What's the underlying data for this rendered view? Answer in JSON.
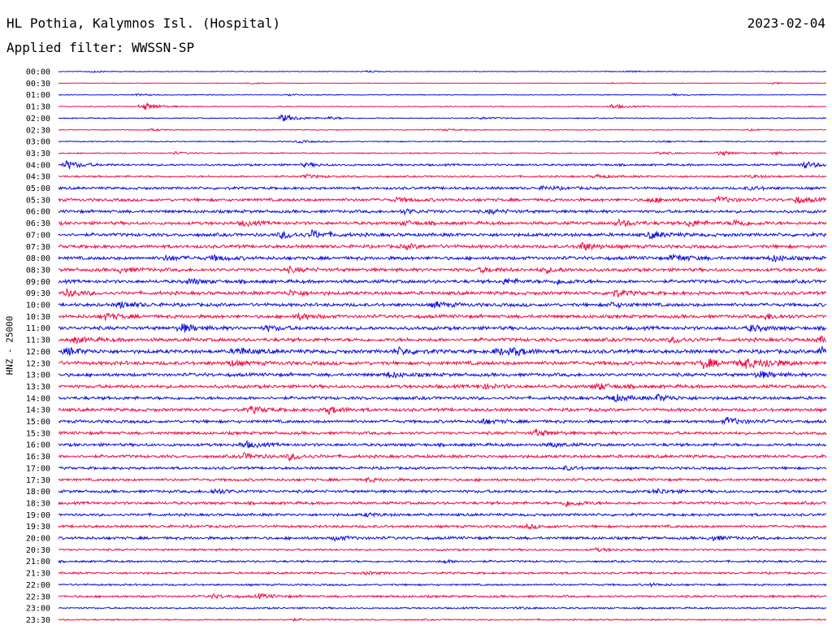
{
  "header": {
    "station": "HL Pothia, Kalymnos Isl. (Hospital)",
    "date": "2023-02-04",
    "filter": "Applied filter: WWSSN-SP"
  },
  "colors": {
    "even_row": "#1010e0",
    "odd_row": "#f0104a",
    "text": "#000000"
  },
  "chart_data": {
    "type": "line",
    "ylabel": "HNZ - 25000",
    "series": [
      {
        "name": "00:00",
        "noise": 0.2,
        "events": [
          {
            "x": 0.04,
            "amp": 0.5
          },
          {
            "x": 0.4,
            "amp": 0.4
          },
          {
            "x": 0.74,
            "amp": 0.3
          }
        ]
      },
      {
        "name": "00:30",
        "noise": 0.15,
        "events": [
          {
            "x": 0.25,
            "amp": 0.3
          },
          {
            "x": 0.72,
            "amp": 0.4
          },
          {
            "x": 0.93,
            "amp": 0.4
          }
        ]
      },
      {
        "name": "01:00",
        "noise": 0.22,
        "events": [
          {
            "x": 0.1,
            "amp": 0.4
          },
          {
            "x": 0.3,
            "amp": 0.4
          },
          {
            "x": 0.8,
            "amp": 0.3
          }
        ]
      },
      {
        "name": "01:30",
        "noise": 0.25,
        "events": [
          {
            "x": 0.11,
            "amp": 1.8
          },
          {
            "x": 0.72,
            "amp": 1.0
          }
        ]
      },
      {
        "name": "02:00",
        "noise": 0.3,
        "events": [
          {
            "x": 0.29,
            "amp": 1.8
          },
          {
            "x": 0.35,
            "amp": 0.5
          },
          {
            "x": 0.55,
            "amp": 0.4
          }
        ]
      },
      {
        "name": "02:30",
        "noise": 0.25,
        "events": [
          {
            "x": 0.12,
            "amp": 0.4
          },
          {
            "x": 0.5,
            "amp": 0.4
          },
          {
            "x": 0.9,
            "amp": 0.3
          }
        ]
      },
      {
        "name": "03:00",
        "noise": 0.3,
        "events": [
          {
            "x": 0.31,
            "amp": 0.6
          },
          {
            "x": 0.78,
            "amp": 0.4
          }
        ]
      },
      {
        "name": "03:30",
        "noise": 0.3,
        "events": [
          {
            "x": 0.15,
            "amp": 0.5
          },
          {
            "x": 0.78,
            "amp": 0.6
          },
          {
            "x": 0.86,
            "amp": 1.0
          },
          {
            "x": 0.93,
            "amp": 0.6
          }
        ]
      },
      {
        "name": "04:00",
        "noise": 0.55,
        "events": [
          {
            "x": 0.01,
            "amp": 1.8
          },
          {
            "x": 0.32,
            "amp": 0.7
          },
          {
            "x": 0.97,
            "amp": 1.6
          }
        ]
      },
      {
        "name": "04:30",
        "noise": 0.5,
        "events": [
          {
            "x": 0.32,
            "amp": 0.8
          },
          {
            "x": 0.7,
            "amp": 0.8
          },
          {
            "x": 0.9,
            "amp": 0.6
          }
        ]
      },
      {
        "name": "05:00",
        "noise": 0.7,
        "events": [
          {
            "x": 0.63,
            "amp": 0.8
          },
          {
            "x": 0.9,
            "amp": 0.7
          }
        ]
      },
      {
        "name": "05:30",
        "noise": 0.8,
        "events": [
          {
            "x": 0.44,
            "amp": 0.8
          },
          {
            "x": 0.77,
            "amp": 1.0
          },
          {
            "x": 0.86,
            "amp": 1.3
          },
          {
            "x": 0.96,
            "amp": 1.4
          }
        ]
      },
      {
        "name": "06:00",
        "noise": 0.8,
        "events": [
          {
            "x": 0.45,
            "amp": 1.0
          },
          {
            "x": 0.56,
            "amp": 0.8
          }
        ]
      },
      {
        "name": "06:30",
        "noise": 0.85,
        "events": [
          {
            "x": 0.24,
            "amp": 1.0
          },
          {
            "x": 0.45,
            "amp": 1.0
          },
          {
            "x": 0.73,
            "amp": 1.3
          },
          {
            "x": 0.82,
            "amp": 1.3
          },
          {
            "x": 0.88,
            "amp": 1.4
          }
        ]
      },
      {
        "name": "07:00",
        "noise": 0.9,
        "events": [
          {
            "x": 0.29,
            "amp": 1.7
          },
          {
            "x": 0.33,
            "amp": 1.5
          },
          {
            "x": 0.77,
            "amp": 1.6
          }
        ]
      },
      {
        "name": "07:30",
        "noise": 0.9,
        "events": [
          {
            "x": 0.68,
            "amp": 1.8
          },
          {
            "x": 0.45,
            "amp": 0.9
          }
        ]
      },
      {
        "name": "08:00",
        "noise": 0.9,
        "events": [
          {
            "x": 0.14,
            "amp": 1.1
          },
          {
            "x": 0.2,
            "amp": 1.0
          },
          {
            "x": 0.8,
            "amp": 1.6
          },
          {
            "x": 0.93,
            "amp": 1.2
          }
        ]
      },
      {
        "name": "08:30",
        "noise": 0.9,
        "events": [
          {
            "x": 0.08,
            "amp": 1.0
          },
          {
            "x": 0.3,
            "amp": 1.0
          },
          {
            "x": 0.55,
            "amp": 1.0
          },
          {
            "x": 0.63,
            "amp": 1.2
          }
        ]
      },
      {
        "name": "09:00",
        "noise": 0.9,
        "events": [
          {
            "x": 0.17,
            "amp": 1.1
          },
          {
            "x": 0.58,
            "amp": 1.1
          },
          {
            "x": 0.65,
            "amp": 0.9
          }
        ]
      },
      {
        "name": "09:30",
        "noise": 0.9,
        "events": [
          {
            "x": 0.01,
            "amp": 1.5
          },
          {
            "x": 0.3,
            "amp": 1.2
          },
          {
            "x": 0.72,
            "amp": 1.7
          }
        ]
      },
      {
        "name": "10:00",
        "noise": 0.9,
        "events": [
          {
            "x": 0.08,
            "amp": 1.5
          },
          {
            "x": 0.49,
            "amp": 1.2
          },
          {
            "x": 0.72,
            "amp": 0.9
          }
        ]
      },
      {
        "name": "10:30",
        "noise": 0.9,
        "events": [
          {
            "x": 0.06,
            "amp": 1.4
          },
          {
            "x": 0.31,
            "amp": 1.4
          },
          {
            "x": 0.92,
            "amp": 1.2
          }
        ]
      },
      {
        "name": "11:00",
        "noise": 0.95,
        "events": [
          {
            "x": 0.16,
            "amp": 1.8
          },
          {
            "x": 0.27,
            "amp": 1.0
          },
          {
            "x": 0.9,
            "amp": 1.4
          }
        ]
      },
      {
        "name": "11:30",
        "noise": 0.95,
        "events": [
          {
            "x": 0.02,
            "amp": 1.2
          },
          {
            "x": 0.8,
            "amp": 1.2
          },
          {
            "x": 0.99,
            "amp": 1.2
          }
        ]
      },
      {
        "name": "12:00",
        "noise": 1.0,
        "events": [
          {
            "x": 0.01,
            "amp": 1.6
          },
          {
            "x": 0.23,
            "amp": 1.8
          },
          {
            "x": 0.44,
            "amp": 1.6
          },
          {
            "x": 0.57,
            "amp": 1.4
          },
          {
            "x": 0.59,
            "amp": 1.5
          },
          {
            "x": 0.99,
            "amp": 2.0
          }
        ]
      },
      {
        "name": "12:30",
        "noise": 1.0,
        "events": [
          {
            "x": 0.22,
            "amp": 1.3
          },
          {
            "x": 0.84,
            "amp": 2.2
          },
          {
            "x": 0.89,
            "amp": 2.6
          },
          {
            "x": 0.92,
            "amp": 1.6
          }
        ]
      },
      {
        "name": "13:00",
        "noise": 0.9,
        "events": [
          {
            "x": 0.43,
            "amp": 1.1
          },
          {
            "x": 0.91,
            "amp": 1.6
          }
        ]
      },
      {
        "name": "13:30",
        "noise": 0.9,
        "events": [
          {
            "x": 0.55,
            "amp": 1.0
          },
          {
            "x": 0.7,
            "amp": 1.6
          }
        ]
      },
      {
        "name": "14:00",
        "noise": 0.85,
        "events": [
          {
            "x": 0.72,
            "amp": 1.6
          },
          {
            "x": 0.78,
            "amp": 1.4
          }
        ]
      },
      {
        "name": "14:30",
        "noise": 0.85,
        "events": [
          {
            "x": 0.25,
            "amp": 1.4
          },
          {
            "x": 0.35,
            "amp": 1.6
          }
        ]
      },
      {
        "name": "15:00",
        "noise": 0.8,
        "events": [
          {
            "x": 0.55,
            "amp": 1.1
          },
          {
            "x": 0.87,
            "amp": 1.7
          }
        ]
      },
      {
        "name": "15:30",
        "noise": 0.8,
        "events": [
          {
            "x": 0.62,
            "amp": 1.5
          }
        ]
      },
      {
        "name": "16:00",
        "noise": 0.8,
        "events": [
          {
            "x": 0.24,
            "amp": 1.5
          },
          {
            "x": 0.64,
            "amp": 0.9
          }
        ]
      },
      {
        "name": "16:30",
        "noise": 0.8,
        "events": [
          {
            "x": 0.24,
            "amp": 1.2
          },
          {
            "x": 0.3,
            "amp": 1.4
          }
        ]
      },
      {
        "name": "17:00",
        "noise": 0.7,
        "events": [
          {
            "x": 0.66,
            "amp": 0.8
          }
        ]
      },
      {
        "name": "17:30",
        "noise": 0.7,
        "events": [
          {
            "x": 0.4,
            "amp": 0.7
          }
        ]
      },
      {
        "name": "18:00",
        "noise": 0.75,
        "events": [
          {
            "x": 0.2,
            "amp": 1.2
          },
          {
            "x": 0.78,
            "amp": 1.0
          }
        ]
      },
      {
        "name": "18:30",
        "noise": 0.75,
        "events": [
          {
            "x": 0.66,
            "amp": 1.4
          }
        ]
      },
      {
        "name": "19:00",
        "noise": 0.7,
        "events": [
          {
            "x": 0.4,
            "amp": 0.7
          }
        ]
      },
      {
        "name": "19:30",
        "noise": 0.7,
        "events": [
          {
            "x": 0.61,
            "amp": 0.8
          }
        ]
      },
      {
        "name": "20:00",
        "noise": 0.75,
        "events": [
          {
            "x": 0.36,
            "amp": 0.9
          },
          {
            "x": 0.85,
            "amp": 1.0
          }
        ]
      },
      {
        "name": "20:30",
        "noise": 0.55,
        "events": [
          {
            "x": 0.7,
            "amp": 0.6
          }
        ]
      },
      {
        "name": "21:00",
        "noise": 0.55,
        "events": [
          {
            "x": 0.5,
            "amp": 0.6
          }
        ]
      },
      {
        "name": "21:30",
        "noise": 0.55,
        "events": [
          {
            "x": 0.4,
            "amp": 0.6
          }
        ]
      },
      {
        "name": "22:00",
        "noise": 0.5,
        "events": [
          {
            "x": 0.77,
            "amp": 0.5
          }
        ]
      },
      {
        "name": "22:30",
        "noise": 0.6,
        "events": [
          {
            "x": 0.26,
            "amp": 1.0
          },
          {
            "x": 0.2,
            "amp": 0.8
          }
        ]
      },
      {
        "name": "23:00",
        "noise": 0.45,
        "events": [
          {
            "x": 0.6,
            "amp": 0.4
          }
        ]
      },
      {
        "name": "23:30",
        "noise": 0.4,
        "events": [
          {
            "x": 0.3,
            "amp": 0.4
          }
        ]
      }
    ]
  }
}
